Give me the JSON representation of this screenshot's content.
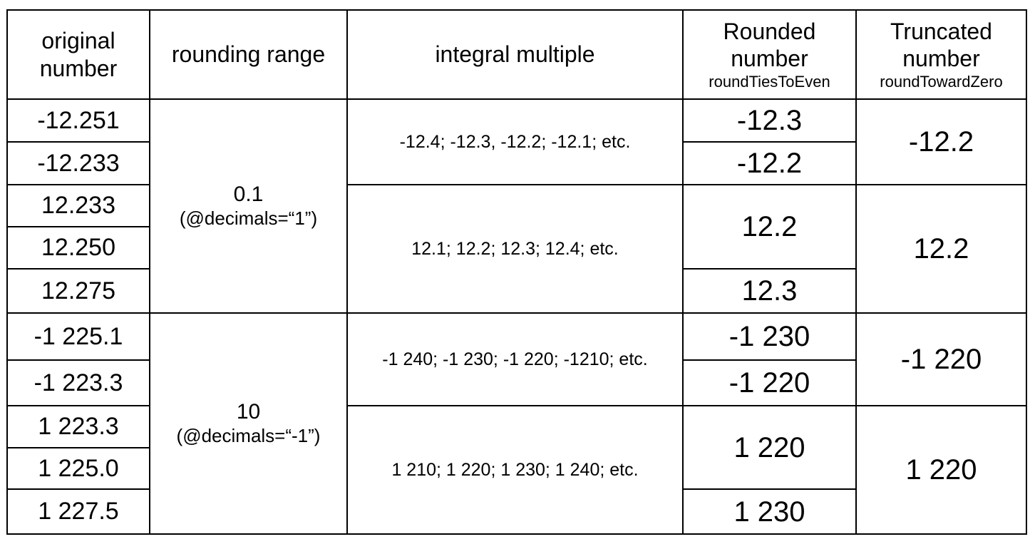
{
  "table": {
    "header": [
      {
        "lines": [
          "original",
          "number"
        ]
      },
      {
        "lines": [
          "rounding range"
        ]
      },
      {
        "lines": [
          "integral multiple"
        ]
      },
      {
        "lines": [
          "Rounded",
          "number"
        ],
        "subtitle": "roundTiesToEven"
      },
      {
        "lines": [
          "Truncated",
          "number"
        ],
        "subtitle": "roundTowardZero"
      }
    ],
    "original": [
      "-12.251",
      "-12.233",
      "12.233",
      "12.250",
      "12.275",
      "-1 225.1",
      "-1 223.3",
      "1 223.3",
      "1 225.0",
      "1 227.5"
    ],
    "range": [
      {
        "value": "0.1",
        "note": "(@decimals=“1”)"
      },
      {
        "value": "10",
        "note": "(@decimals=“-1”)"
      }
    ],
    "multiples": [
      "-12.4; -12.3, -12.2; -12.1; etc.",
      "12.1; 12.2; 12.3; 12.4; etc.",
      "-1 240; -1 230; -1 220; -1210; etc.",
      "1 210; 1 220; 1 230; 1 240; etc."
    ],
    "rounded": [
      "-12.3",
      "-12.2",
      "12.2",
      "12.3",
      "-1 230",
      "-1 220",
      "1 220",
      "1 230"
    ],
    "truncated": [
      "-12.2",
      "12.2",
      "-1 220",
      "1 220"
    ]
  }
}
